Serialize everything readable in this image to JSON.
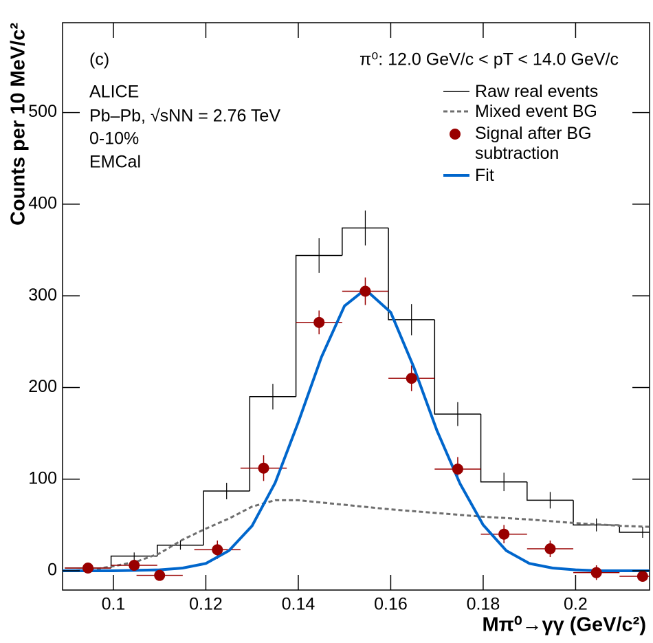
{
  "chart_data": {
    "type": "mixed",
    "x_label": "Mπ⁰→γγ (GeV/c²)",
    "y_label": "Counts per 10 MeV/c²",
    "annotations": [
      "(c)",
      "π⁰: 12.0 GeV/c < pT < 14.0 GeV/c",
      "ALICE",
      "Pb–Pb, √sNN = 2.76 TeV",
      "0-10%",
      "EMCal"
    ],
    "xlim": [
      0.089,
      0.216
    ],
    "ylim": [
      -21,
      598
    ],
    "xticks": [
      0.1,
      0.12,
      0.14,
      0.16,
      0.18,
      0.2
    ],
    "yticks": [
      0,
      100,
      200,
      300,
      400,
      500
    ],
    "series": [
      {
        "name": "Raw real events",
        "type": "histogram",
        "color": "#000000",
        "bins": [
          0.0895,
          0.0995,
          0.1095,
          0.1195,
          0.1295,
          0.1395,
          0.1495,
          0.1595,
          0.1695,
          0.1795,
          0.1895,
          0.1995,
          0.2095,
          0.2195
        ],
        "values": [
          3,
          16,
          28,
          87,
          190,
          344,
          374,
          274,
          171,
          97,
          77,
          50,
          42
        ],
        "errors": [
          2,
          4,
          5,
          9,
          14,
          19,
          19,
          17,
          13,
          10,
          9,
          7,
          6
        ]
      },
      {
        "name": "Mixed event BG",
        "type": "line",
        "linestyle": "dashed",
        "color": "#6e6e6e",
        "x": [
          0.089,
          0.095,
          0.1,
          0.105,
          0.11,
          0.115,
          0.12,
          0.125,
          0.13,
          0.135,
          0.14,
          0.15,
          0.16,
          0.17,
          0.18,
          0.19,
          0.2,
          0.21,
          0.216
        ],
        "values": [
          0,
          1,
          5,
          10,
          19,
          34,
          46,
          57,
          70,
          77,
          77,
          72,
          67,
          63,
          59,
          56,
          52,
          49,
          48
        ]
      },
      {
        "name": "Signal after BG subtraction",
        "type": "scatter",
        "color": "#990000",
        "x": [
          0.0945,
          0.1045,
          0.11,
          0.1225,
          0.1325,
          0.1445,
          0.1545,
          0.1645,
          0.1745,
          0.1845,
          0.1945,
          0.2045,
          0.2145
        ],
        "values": [
          3,
          6,
          -5,
          23,
          112,
          271,
          305,
          210,
          111,
          40,
          24,
          -2,
          -6
        ],
        "xerr": [
          0.005,
          0.005,
          0.005,
          0.005,
          0.005,
          0.005,
          0.005,
          0.005,
          0.005,
          0.005,
          0.005,
          0.005,
          0.005
        ],
        "yerr": [
          4,
          6,
          5,
          10,
          14,
          13,
          15,
          14,
          13,
          10,
          9,
          8,
          6
        ]
      },
      {
        "name": "Fit",
        "type": "line",
        "linestyle": "solid",
        "color": "#0066cc",
        "x": [
          0.089,
          0.1,
          0.11,
          0.115,
          0.12,
          0.125,
          0.13,
          0.135,
          0.14,
          0.145,
          0.15,
          0.1545,
          0.16,
          0.165,
          0.17,
          0.175,
          0.18,
          0.185,
          0.19,
          0.195,
          0.2,
          0.205,
          0.21,
          0.216
        ],
        "values": [
          0,
          0,
          1,
          3,
          8,
          22,
          49,
          96,
          162,
          233,
          289,
          307,
          282,
          222,
          153,
          95,
          50,
          22,
          8,
          3,
          1,
          0,
          0,
          0
        ]
      }
    ]
  }
}
